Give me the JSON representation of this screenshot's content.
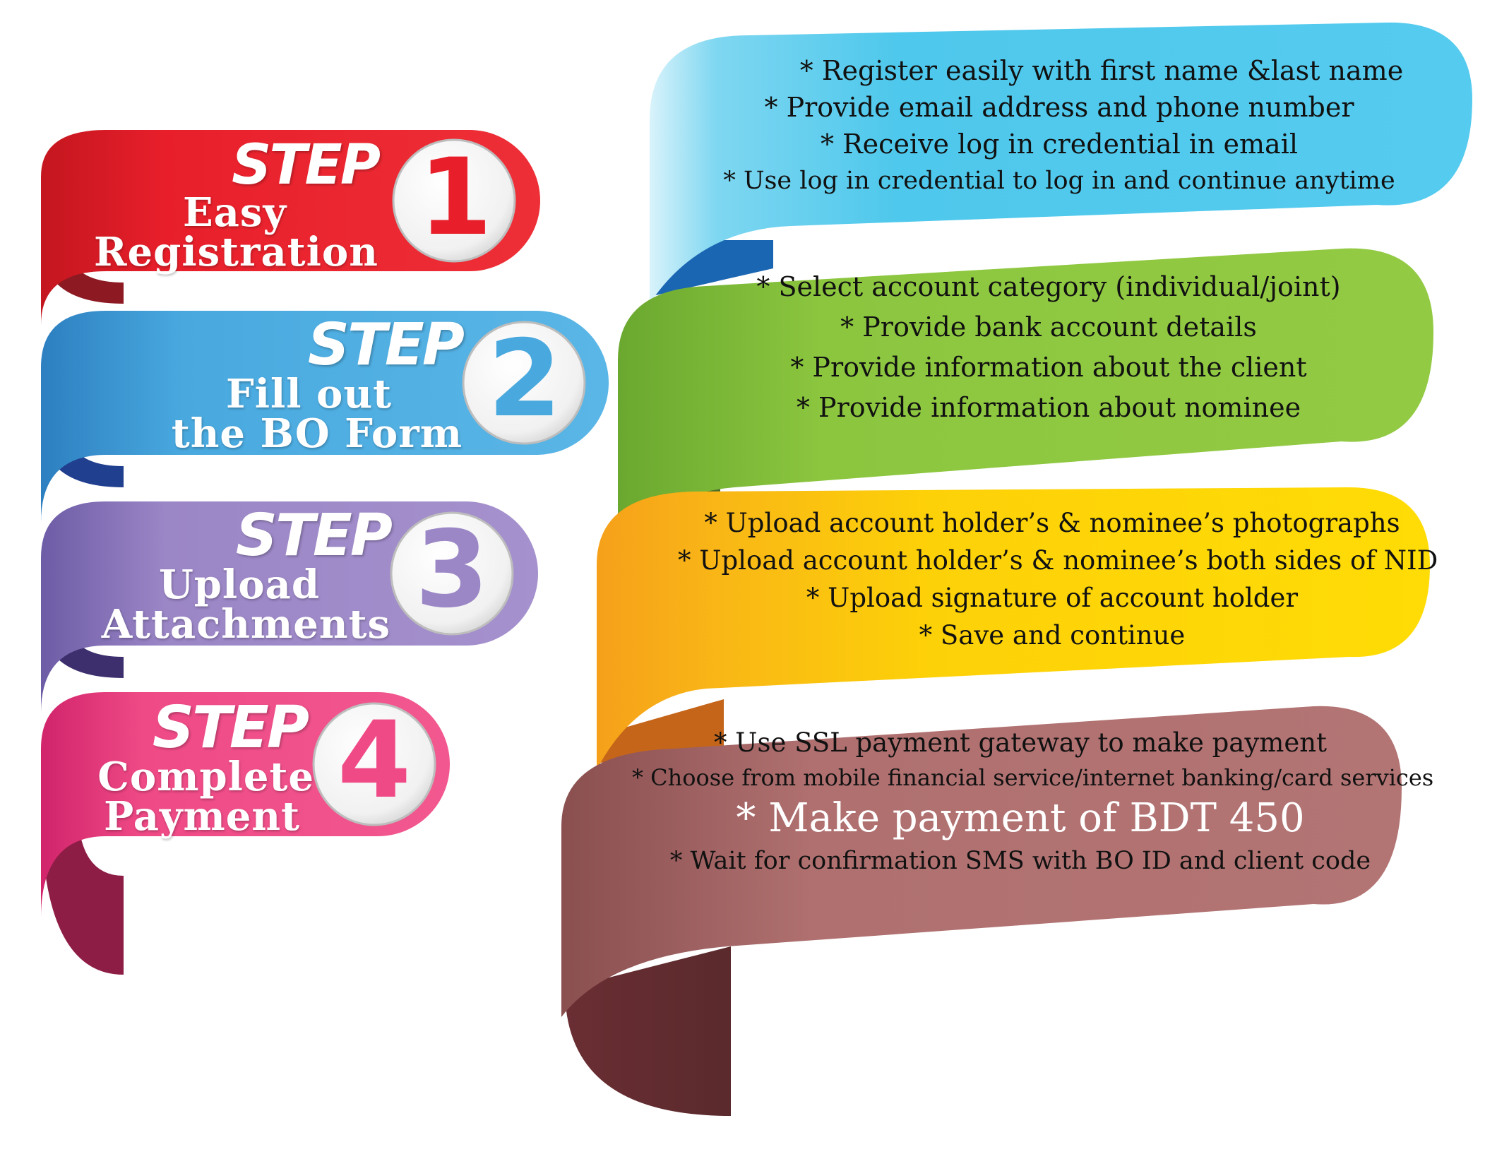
{
  "steps": [
    {
      "word": "STEP",
      "number": "1",
      "title_lines": [
        "Easy",
        "Registration"
      ],
      "color": "#e81f2b",
      "details": [
        "* Register easily with first name &last name",
        "* Provide email address and phone number",
        "* Receive log in credential in email",
        "* Use log in credential to log in and continue anytime"
      ],
      "details_color": "#4ec8ec"
    },
    {
      "word": "STEP",
      "number": "2",
      "title_lines": [
        "Fill out",
        "the BO Form"
      ],
      "color": "#49a9df",
      "details": [
        "* Select account category (individual/joint)",
        "* Provide bank account details",
        "* Provide information about the client",
        "* Provide information about nominee"
      ],
      "details_color": "#8cc63f"
    },
    {
      "word": "STEP",
      "number": "3",
      "title_lines": [
        "Upload",
        "Attachments"
      ],
      "color": "#9b86c6",
      "details": [
        "* Upload account holder’s & nominee’s photographs",
        "* Upload account holder’s & nominee’s both sides of NID",
        "* Upload signature of account holder",
        "* Save and continue"
      ],
      "details_color": "#fdd108"
    },
    {
      "word": "STEP",
      "number": "4",
      "title_lines": [
        "Complete",
        "Payment"
      ],
      "color": "#ef4a86",
      "details": [
        "* Use SSL payment gateway to make payment",
        "* Choose from mobile financial service/internet banking/card services",
        "* Make payment of BDT 450",
        "* Wait for confirmation SMS with BO ID and client code"
      ],
      "details_color": "#b07070"
    }
  ]
}
